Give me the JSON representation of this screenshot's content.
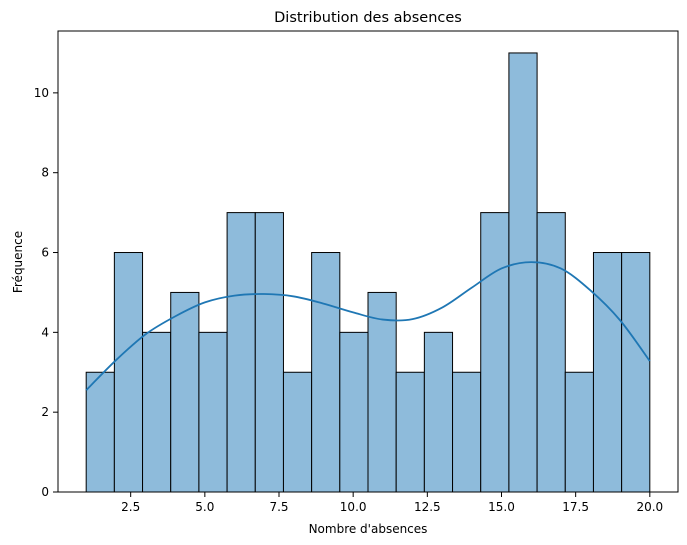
{
  "chart_data": {
    "type": "bar",
    "title": "Distribution des absences",
    "xlabel": "Nombre d'absences",
    "ylabel": "Fréquence",
    "xlim": [
      0.05,
      20.95
    ],
    "ylim": [
      0,
      11.55
    ],
    "xticks": [
      2.5,
      5.0,
      7.5,
      10.0,
      12.5,
      15.0,
      17.5,
      20.0
    ],
    "xtick_labels": [
      "2.5",
      "5.0",
      "7.5",
      "10.0",
      "12.5",
      "15.0",
      "17.5",
      "20.0"
    ],
    "yticks": [
      0,
      2,
      4,
      6,
      8,
      10
    ],
    "ytick_labels": [
      "0",
      "2",
      "4",
      "6",
      "8",
      "10"
    ],
    "bin_edges": [
      1.0,
      1.95,
      2.9,
      3.85,
      4.8,
      5.75,
      6.7,
      7.65,
      8.6,
      9.55,
      10.5,
      11.45,
      12.4,
      13.35,
      14.3,
      15.25,
      16.2,
      17.15,
      18.1,
      19.05,
      20.0
    ],
    "values": [
      3,
      6,
      4,
      5,
      4,
      7,
      7,
      3,
      6,
      4,
      5,
      3,
      4,
      3,
      7,
      11,
      7,
      3,
      6,
      6
    ],
    "kde": {
      "x": [
        1.0,
        2.0,
        3.0,
        4.0,
        5.0,
        6.0,
        7.0,
        8.0,
        9.0,
        10.0,
        11.0,
        12.0,
        13.0,
        14.0,
        15.0,
        16.0,
        17.0,
        18.0,
        19.0,
        20.0
      ],
      "y": [
        2.55,
        3.3,
        3.95,
        4.4,
        4.75,
        4.92,
        4.96,
        4.9,
        4.72,
        4.5,
        4.32,
        4.33,
        4.62,
        5.12,
        5.6,
        5.76,
        5.6,
        5.05,
        4.3,
        3.28
      ]
    },
    "grid": false,
    "legend": "none",
    "colors": {
      "bar_fill": "#8ebbdb",
      "bar_edge": "#000000",
      "kde_line": "#1f77b4"
    }
  }
}
